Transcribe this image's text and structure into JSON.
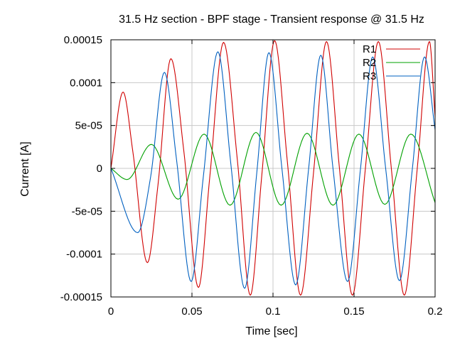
{
  "chart_data": {
    "type": "line",
    "title": "31.5 Hz section - BPF stage - Transient response @ 31.5 Hz",
    "xlabel": "Time [sec]",
    "ylabel": "Current [A]",
    "xlim": [
      0,
      0.2
    ],
    "ylim": [
      -0.00015,
      0.00015
    ],
    "grid": true,
    "legend_position": "top-right",
    "x_ticks": [
      0,
      0.05,
      0.1,
      0.15,
      0.2
    ],
    "x_tick_labels": [
      "0",
      "0.05",
      "0.1",
      "0.15",
      "0.2"
    ],
    "y_ticks": [
      -0.00015,
      -0.0001,
      -5e-05,
      0,
      5e-05,
      0.0001,
      0.00015
    ],
    "y_tick_labels": [
      "-0.00015",
      "-0.0001",
      "-5e-05",
      "0",
      "5e-05",
      "0.0001",
      "0.00015"
    ],
    "series": [
      {
        "name": "R1",
        "color": "#d00000",
        "points": [
          [
            0,
            0
          ],
          [
            0.0075,
            8.9e-05
          ],
          [
            0.0135,
            2e-05
          ],
          [
            0.0225,
            -0.00011
          ],
          [
            0.029,
            -2e-05
          ],
          [
            0.037,
            0.000128
          ],
          [
            0.045,
            2e-05
          ],
          [
            0.054,
            -0.000139
          ],
          [
            0.061,
            -1e-05
          ],
          [
            0.0695,
            0.000147
          ],
          [
            0.078,
            1e-05
          ],
          [
            0.086,
            -0.000148
          ],
          [
            0.093,
            -1e-05
          ],
          [
            0.101,
            0.000149
          ],
          [
            0.109,
            5e-06
          ],
          [
            0.117,
            -0.000148
          ],
          [
            0.125,
            -5e-06
          ],
          [
            0.133,
            0.000148
          ],
          [
            0.141,
            0.0
          ],
          [
            0.149,
            -0.000148
          ],
          [
            0.157,
            0.0
          ],
          [
            0.165,
            0.000148
          ],
          [
            0.173,
            0.0
          ],
          [
            0.181,
            -0.000148
          ],
          [
            0.189,
            0.0
          ],
          [
            0.1965,
            0.000148
          ],
          [
            0.2,
            6e-05
          ]
        ]
      },
      {
        "name": "R2",
        "color": "#00a000",
        "points": [
          [
            0,
            0
          ],
          [
            0.01,
            -1.3e-05
          ],
          [
            0.025,
            2.8e-05
          ],
          [
            0.0415,
            -3.6e-05
          ],
          [
            0.0575,
            4e-05
          ],
          [
            0.0735,
            -4.3e-05
          ],
          [
            0.0895,
            4.2e-05
          ],
          [
            0.105,
            -4.3e-05
          ],
          [
            0.121,
            4.1e-05
          ],
          [
            0.137,
            -4.3e-05
          ],
          [
            0.153,
            4e-05
          ],
          [
            0.169,
            -4.2e-05
          ],
          [
            0.185,
            4e-05
          ],
          [
            0.2,
            -4e-05
          ]
        ]
      },
      {
        "name": "R3",
        "color": "#0060c0",
        "points": [
          [
            0,
            0
          ],
          [
            0.0165,
            -7.5e-05
          ],
          [
            0.0245,
            -1e-05
          ],
          [
            0.033,
            0.000112
          ],
          [
            0.0405,
            1e-05
          ],
          [
            0.0495,
            -0.000132
          ],
          [
            0.057,
            -1e-05
          ],
          [
            0.066,
            0.000136
          ],
          [
            0.074,
            5e-06
          ],
          [
            0.0825,
            -0.00014
          ],
          [
            0.09,
            -5e-06
          ],
          [
            0.0975,
            0.000135
          ],
          [
            0.1055,
            0.0
          ],
          [
            0.114,
            -0.000136
          ],
          [
            0.122,
            0.0
          ],
          [
            0.1295,
            0.000132
          ],
          [
            0.137,
            0.0
          ],
          [
            0.146,
            -0.000132
          ],
          [
            0.154,
            0.0
          ],
          [
            0.1615,
            0.00013
          ],
          [
            0.1695,
            0.0
          ],
          [
            0.178,
            -0.000131
          ],
          [
            0.186,
            0.0
          ],
          [
            0.1935,
            0.00013
          ],
          [
            0.2,
            4.5e-05
          ]
        ]
      }
    ]
  }
}
